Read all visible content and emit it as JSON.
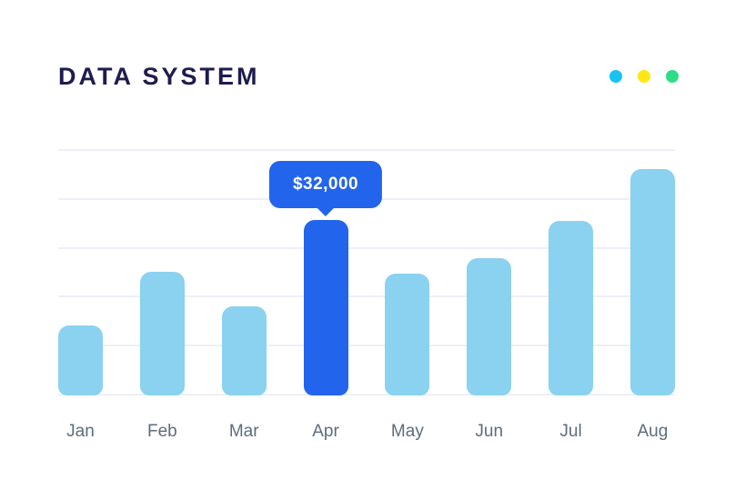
{
  "header": {
    "title": "DATA SYSTEM",
    "status_dots": [
      {
        "name": "cyan",
        "color": "#18c3f2"
      },
      {
        "name": "yellow",
        "color": "#ffe713"
      },
      {
        "name": "green",
        "color": "#2edd87"
      }
    ]
  },
  "colors": {
    "background": "#ffffff",
    "title_navy": "#1f1c4f",
    "accent_blue": "#2364ec",
    "bar_light_blue": "#8ad2ef",
    "gridline": "#edeff8",
    "axis_label_gray": "#5c6d7e",
    "tooltip_text": "#ffffff"
  },
  "chart_data": {
    "type": "bar",
    "title": "DATA SYSTEM",
    "categories": [
      "Jan",
      "Feb",
      "Mar",
      "Apr",
      "May",
      "Jun",
      "Jul",
      "Aug"
    ],
    "values": [
      12800,
      22500,
      16200,
      32000,
      22300,
      25000,
      31800,
      41300
    ],
    "unit": "USD",
    "highlight_index": 3,
    "highlight_category": "Apr",
    "tooltip_label": "$32,000",
    "xlabel": "",
    "ylabel": "",
    "ylim": [
      0,
      45000
    ],
    "grid": true,
    "gridline_count": 6,
    "legend_position": "none"
  }
}
